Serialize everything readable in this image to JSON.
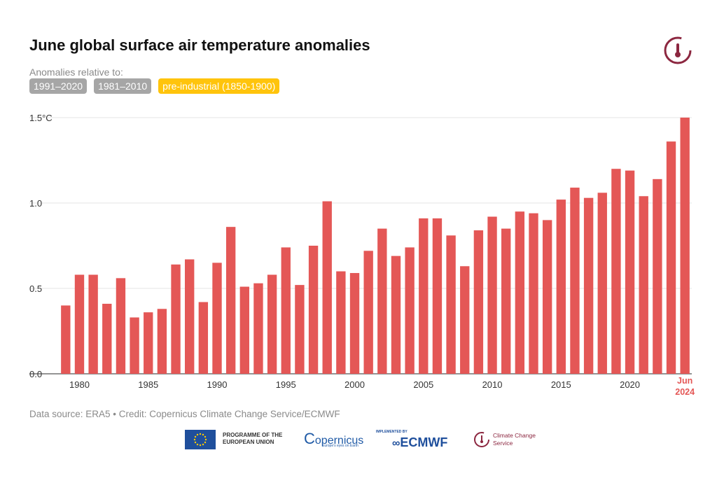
{
  "title": "June global surface air temperature anomalies",
  "anomalies_label": "Anomalies relative to:",
  "buttons": [
    {
      "label": "1991–2020",
      "active": false
    },
    {
      "label": "1981–2010",
      "active": false
    },
    {
      "label": "pre-industrial (1850-1900)",
      "active": true
    }
  ],
  "source": "Data source: ERA5 • Credit: Copernicus Climate Change Service/ECMWF",
  "footer": {
    "eu": "PROGRAMME OF THE EUROPEAN UNION",
    "copernicus": "opernicus",
    "copernicus_sub": "Europe's eyes on Earth",
    "implemented": "IMPLEMENTED BY",
    "ecmwf": "ECMWF",
    "c3s": "Climate Change Service"
  },
  "colors": {
    "bar": "#e45756",
    "accent": "#e45756",
    "button_active": "#ffc40c",
    "button": "#a6a6a6",
    "c3s": "#8c2740"
  },
  "chart_data": {
    "type": "bar",
    "x": [
      1979,
      1980,
      1981,
      1982,
      1983,
      1984,
      1985,
      1986,
      1987,
      1988,
      1989,
      1990,
      1991,
      1992,
      1993,
      1994,
      1995,
      1996,
      1997,
      1998,
      1999,
      2000,
      2001,
      2002,
      2003,
      2004,
      2005,
      2006,
      2007,
      2008,
      2009,
      2010,
      2011,
      2012,
      2013,
      2014,
      2015,
      2016,
      2017,
      2018,
      2019,
      2020,
      2021,
      2022,
      2023,
      2024
    ],
    "values": [
      0.4,
      0.58,
      0.58,
      0.41,
      0.56,
      0.33,
      0.36,
      0.38,
      0.64,
      0.67,
      0.42,
      0.65,
      0.86,
      0.51,
      0.53,
      0.58,
      0.74,
      0.52,
      0.75,
      1.01,
      0.6,
      0.59,
      0.72,
      0.85,
      0.69,
      0.74,
      0.91,
      0.91,
      0.81,
      0.63,
      0.84,
      0.92,
      0.85,
      0.95,
      0.94,
      0.9,
      1.02,
      1.09,
      1.03,
      1.06,
      1.2,
      1.19,
      1.04,
      1.14,
      1.36,
      1.5
    ],
    "ylim": [
      0,
      1.5
    ],
    "yticks": [
      0.0,
      0.5,
      1.0,
      1.5
    ],
    "ytick_labels": [
      "0.0",
      "0.5",
      "1.0",
      "1.5°C"
    ],
    "xticks": [
      1980,
      1985,
      1990,
      1995,
      2000,
      2005,
      2010,
      2015,
      2020
    ],
    "highlight_label": [
      "Jun",
      "2024"
    ],
    "grid": true
  }
}
